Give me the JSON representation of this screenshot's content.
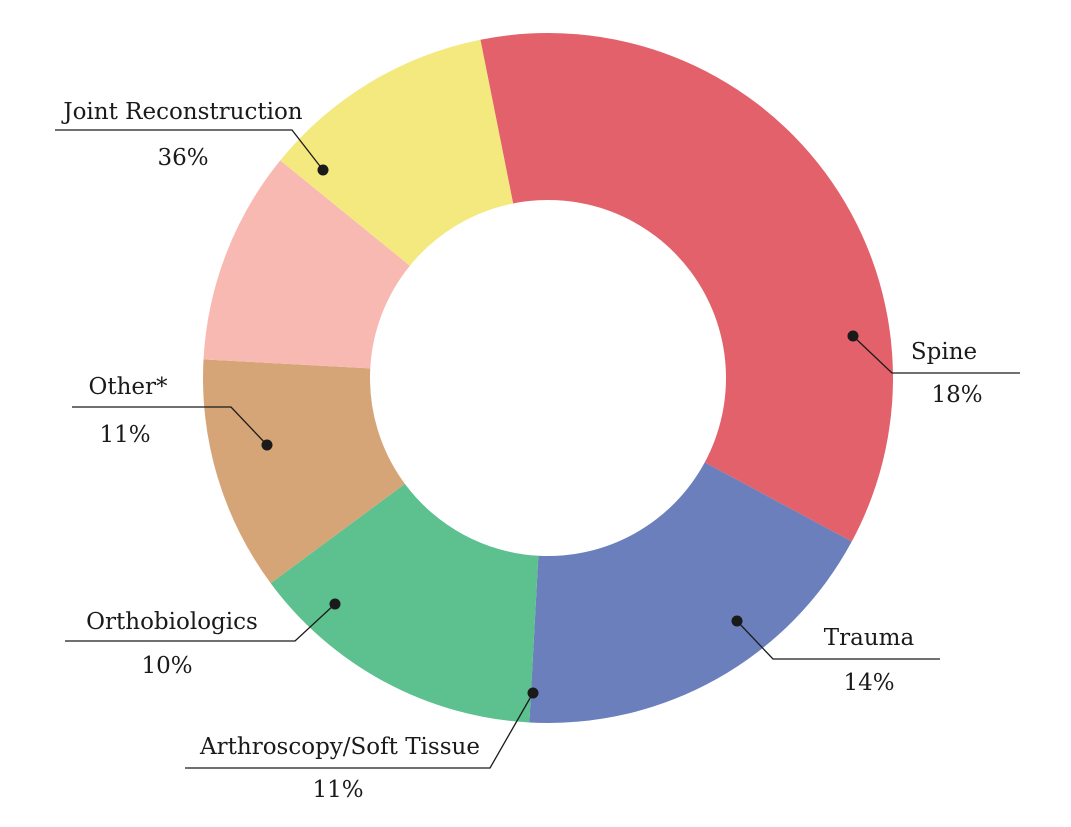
{
  "chart_data": {
    "type": "pie",
    "donut": true,
    "categories": [
      "Joint Reconstruction",
      "Spine",
      "Trauma",
      "Arthroscopy/Soft Tissue",
      "Orthobiologics",
      "Other*"
    ],
    "values": [
      36,
      18,
      14,
      11,
      10,
      11
    ],
    "value_labels": [
      "36%",
      "18%",
      "14%",
      "11%",
      "10%",
      "11%"
    ],
    "colors": [
      "#e3616a",
      "#6a7fbb",
      "#5cc08f",
      "#d6a577",
      "#f9b9b3",
      "#f3e97e"
    ]
  }
}
